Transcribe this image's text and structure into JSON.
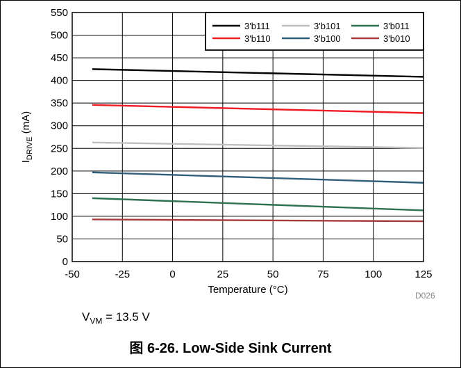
{
  "chart_data": {
    "type": "line",
    "xlabel": "Temperature (°C)",
    "ylabel": {
      "main": "I",
      "sub": "DRIVE",
      "unit": " (mA)"
    },
    "xlim": [
      -50,
      125
    ],
    "ylim": [
      0,
      550
    ],
    "xticks": [
      -50,
      -25,
      0,
      25,
      50,
      75,
      100,
      125
    ],
    "yticks": [
      0,
      50,
      100,
      150,
      200,
      250,
      300,
      350,
      400,
      450,
      500,
      550
    ],
    "grid": true,
    "legend_position": "top-right",
    "x": [
      -40,
      125
    ],
    "series": [
      {
        "name": "3'b111",
        "color": "#000000",
        "values": [
          425,
          408
        ]
      },
      {
        "name": "3'b101",
        "color": "#bfbfbf",
        "values": [
          263,
          251
        ]
      },
      {
        "name": "3'b011",
        "color": "#2e7150",
        "values": [
          140,
          113
        ]
      },
      {
        "name": "3'b110",
        "color": "#ee1c25",
        "values": [
          346,
          328
        ]
      },
      {
        "name": "3'b100",
        "color": "#2f5f78",
        "values": [
          197,
          174
        ]
      },
      {
        "name": "3'b010",
        "color": "#a83c3c",
        "values": [
          93,
          89
        ]
      }
    ]
  },
  "code": "D026",
  "note": {
    "prefix": "V",
    "sub": "VM",
    "suffix": " = 13.5 V"
  },
  "caption": "图 6-26. Low-Side Sink Current"
}
